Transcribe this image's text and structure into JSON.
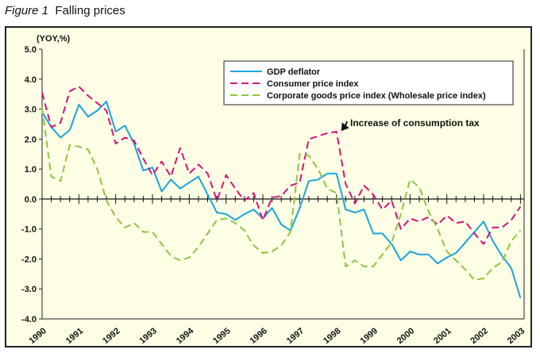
{
  "figure": {
    "label": "Figure 1",
    "title": "Falling prices"
  },
  "chart_data": {
    "type": "line",
    "ylabel": "(YOY,%)",
    "ylim": [
      -4.0,
      5.0
    ],
    "yticks": [
      "5.0",
      "4.0",
      "3.0",
      "2.0",
      "1.0",
      "0.0",
      "-1.0",
      "-2.0",
      "-3.0",
      "-4.0"
    ],
    "xlim": [
      1990.0,
      2003.1
    ],
    "xticks": [
      "1990",
      "1991",
      "1992",
      "1993",
      "1994",
      "1995",
      "1996",
      "1997",
      "1998",
      "1999",
      "2000",
      "2001",
      "2002",
      "2003"
    ],
    "grid": false,
    "legend_position": "top-right",
    "series": [
      {
        "name": "GDP deflator",
        "color": "#1aa3dc",
        "dash": "solid",
        "points": [
          [
            1990.0,
            2.9
          ],
          [
            1990.25,
            2.4
          ],
          [
            1990.5,
            2.05
          ],
          [
            1990.75,
            2.3
          ],
          [
            1991.0,
            3.15
          ],
          [
            1991.25,
            2.75
          ],
          [
            1991.5,
            2.95
          ],
          [
            1991.75,
            3.25
          ],
          [
            1992.0,
            2.25
          ],
          [
            1992.25,
            2.45
          ],
          [
            1992.5,
            1.85
          ],
          [
            1992.75,
            0.95
          ],
          [
            1993.0,
            1.05
          ],
          [
            1993.25,
            0.25
          ],
          [
            1993.5,
            0.65
          ],
          [
            1993.75,
            0.35
          ],
          [
            1994.0,
            0.55
          ],
          [
            1994.25,
            0.75
          ],
          [
            1994.5,
            0.15
          ],
          [
            1994.75,
            -0.45
          ],
          [
            1995.0,
            -0.5
          ],
          [
            1995.25,
            -0.7
          ],
          [
            1995.5,
            -0.5
          ],
          [
            1995.75,
            -0.35
          ],
          [
            1996.0,
            -0.65
          ],
          [
            1996.25,
            -0.3
          ],
          [
            1996.5,
            -0.85
          ],
          [
            1996.75,
            -1.05
          ],
          [
            1997.0,
            -0.3
          ],
          [
            1997.25,
            0.6
          ],
          [
            1997.5,
            0.65
          ],
          [
            1997.75,
            0.85
          ],
          [
            1998.0,
            0.85
          ],
          [
            1998.25,
            -0.35
          ],
          [
            1998.5,
            -0.45
          ],
          [
            1998.75,
            -0.35
          ],
          [
            1999.0,
            -1.15
          ],
          [
            1999.25,
            -1.15
          ],
          [
            1999.5,
            -1.5
          ],
          [
            1999.75,
            -2.05
          ],
          [
            2000.0,
            -1.75
          ],
          [
            2000.25,
            -1.85
          ],
          [
            2000.5,
            -1.85
          ],
          [
            2000.75,
            -2.15
          ],
          [
            2001.0,
            -1.95
          ],
          [
            2001.25,
            -1.8
          ],
          [
            2001.5,
            -1.45
          ],
          [
            2001.75,
            -1.1
          ],
          [
            2002.0,
            -0.75
          ],
          [
            2002.25,
            -1.4
          ],
          [
            2002.5,
            -1.9
          ],
          [
            2002.75,
            -2.3
          ],
          [
            2003.0,
            -3.3
          ]
        ]
      },
      {
        "name": "Consumer price index",
        "color": "#d4127a",
        "dash": "dashed",
        "points": [
          [
            1990.0,
            3.55
          ],
          [
            1990.25,
            2.4
          ],
          [
            1990.5,
            2.55
          ],
          [
            1990.75,
            3.6
          ],
          [
            1991.0,
            3.75
          ],
          [
            1991.25,
            3.45
          ],
          [
            1991.5,
            3.2
          ],
          [
            1991.75,
            2.95
          ],
          [
            1992.0,
            1.85
          ],
          [
            1992.25,
            2.05
          ],
          [
            1992.5,
            1.95
          ],
          [
            1992.75,
            1.35
          ],
          [
            1993.0,
            0.8
          ],
          [
            1993.25,
            1.25
          ],
          [
            1993.5,
            0.75
          ],
          [
            1993.75,
            1.7
          ],
          [
            1994.0,
            0.85
          ],
          [
            1994.25,
            1.15
          ],
          [
            1994.5,
            0.85
          ],
          [
            1994.75,
            -0.05
          ],
          [
            1995.0,
            0.8
          ],
          [
            1995.25,
            0.35
          ],
          [
            1995.5,
            -0.05
          ],
          [
            1995.75,
            0.2
          ],
          [
            1996.0,
            -0.7
          ],
          [
            1996.25,
            0.05
          ],
          [
            1996.5,
            0.1
          ],
          [
            1996.75,
            0.45
          ],
          [
            1997.0,
            0.55
          ],
          [
            1997.25,
            2.0
          ],
          [
            1997.5,
            2.1
          ],
          [
            1997.75,
            2.2
          ],
          [
            1998.0,
            2.25
          ],
          [
            1998.25,
            0.5
          ],
          [
            1998.5,
            -0.15
          ],
          [
            1998.75,
            0.45
          ],
          [
            1999.0,
            0.15
          ],
          [
            1999.25,
            -0.35
          ],
          [
            1999.5,
            -0.05
          ],
          [
            1999.75,
            -1.0
          ],
          [
            2000.0,
            -0.65
          ],
          [
            2000.25,
            -0.75
          ],
          [
            2000.5,
            -0.6
          ],
          [
            2000.75,
            -0.85
          ],
          [
            2001.0,
            -0.55
          ],
          [
            2001.25,
            -0.8
          ],
          [
            2001.5,
            -0.75
          ],
          [
            2001.75,
            -1.15
          ],
          [
            2002.0,
            -1.5
          ],
          [
            2002.25,
            -0.95
          ],
          [
            2002.5,
            -0.95
          ],
          [
            2002.75,
            -0.7
          ],
          [
            2003.0,
            -0.25
          ]
        ]
      },
      {
        "name": "Corporate goods price index (Wholesale price index)",
        "color": "#8cc63e",
        "dash": "dashed",
        "points": [
          [
            1990.0,
            3.05
          ],
          [
            1990.25,
            0.75
          ],
          [
            1990.5,
            0.6
          ],
          [
            1990.75,
            1.8
          ],
          [
            1991.0,
            1.75
          ],
          [
            1991.25,
            1.65
          ],
          [
            1991.5,
            1.0
          ],
          [
            1991.75,
            -0.05
          ],
          [
            1992.0,
            -0.6
          ],
          [
            1992.25,
            -0.95
          ],
          [
            1992.5,
            -0.8
          ],
          [
            1992.75,
            -1.1
          ],
          [
            1993.0,
            -1.1
          ],
          [
            1993.25,
            -1.5
          ],
          [
            1993.5,
            -1.9
          ],
          [
            1993.75,
            -2.05
          ],
          [
            1994.0,
            -1.95
          ],
          [
            1994.25,
            -1.6
          ],
          [
            1994.5,
            -1.15
          ],
          [
            1994.75,
            -0.7
          ],
          [
            1995.0,
            -0.65
          ],
          [
            1995.25,
            -0.8
          ],
          [
            1995.5,
            -1.05
          ],
          [
            1995.75,
            -1.55
          ],
          [
            1996.0,
            -1.8
          ],
          [
            1996.25,
            -1.75
          ],
          [
            1996.5,
            -1.55
          ],
          [
            1996.75,
            -1.1
          ],
          [
            1997.0,
            1.5
          ],
          [
            1997.25,
            1.45
          ],
          [
            1997.5,
            1.0
          ],
          [
            1997.75,
            0.35
          ],
          [
            1998.0,
            0.2
          ],
          [
            1998.25,
            -2.25
          ],
          [
            1998.5,
            -2.05
          ],
          [
            1998.75,
            -2.25
          ],
          [
            1999.0,
            -2.25
          ],
          [
            1999.25,
            -1.85
          ],
          [
            1999.5,
            -1.45
          ],
          [
            1999.75,
            -0.5
          ],
          [
            2000.0,
            0.65
          ],
          [
            2000.25,
            0.4
          ],
          [
            2000.5,
            -0.4
          ],
          [
            2000.75,
            -1.0
          ],
          [
            2001.0,
            -1.75
          ],
          [
            2001.25,
            -2.05
          ],
          [
            2001.5,
            -2.35
          ],
          [
            2001.75,
            -2.7
          ],
          [
            2002.0,
            -2.65
          ],
          [
            2002.25,
            -2.3
          ],
          [
            2002.5,
            -2.1
          ],
          [
            2002.75,
            -1.4
          ],
          [
            2003.0,
            -1.05
          ]
        ]
      }
    ],
    "annotations": [
      {
        "text": "Increase of consumption tax",
        "target": [
          1998.0,
          1.95
        ]
      }
    ]
  }
}
